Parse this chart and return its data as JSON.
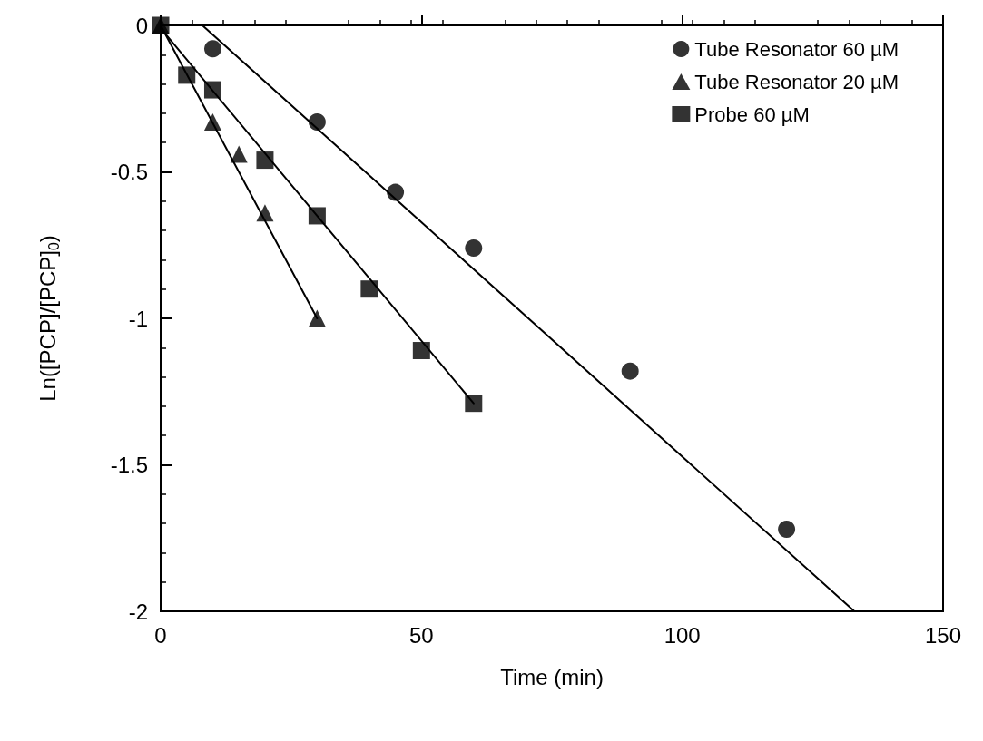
{
  "chart_data": {
    "type": "scatter",
    "xlabel": "Time (min)",
    "ylabel": "Ln([PCP]/[PCP]$_{0}$)",
    "xlim": [
      0,
      150
    ],
    "xticks": [
      0,
      50,
      100,
      150
    ],
    "ylim": [
      -2,
      0
    ],
    "yticks": [
      0,
      -0.5,
      -1,
      -1.5,
      -2
    ],
    "grid": false,
    "legend": "top right",
    "series": [
      {
        "name": "Tube Resonator 60 µM",
        "marker": "circle",
        "color": "#000000",
        "x": [
          10,
          30,
          45,
          60,
          90,
          120
        ],
        "values": [
          -0.08,
          -0.33,
          -0.57,
          -0.76,
          -1.18,
          -1.72
        ]
      },
      {
        "name": "Tube Resonator 20 µM",
        "marker": "triangle",
        "color": "#000000",
        "x": [
          0,
          10,
          15,
          20,
          30
        ],
        "values": [
          0,
          -0.33,
          -0.44,
          -0.64,
          -1.0
        ]
      },
      {
        "name": "Probe 60 µM",
        "marker": "square",
        "color": "#000000",
        "x": [
          0,
          5,
          10,
          20,
          30,
          40,
          50,
          60
        ],
        "values": [
          0,
          -0.17,
          -0.22,
          -0.46,
          -0.65,
          -0.9,
          -1.11,
          -1.29
        ]
      },
      {
        "type": "line",
        "marker": "none",
        "color": "#000000",
        "x": [
          8,
          133
        ],
        "values": [
          0,
          -2
        ]
      },
      {
        "type": "line",
        "marker": "none",
        "color": "#000000",
        "x": [
          0,
          30
        ],
        "values": [
          0,
          -1.0
        ]
      },
      {
        "type": "line",
        "marker": "none",
        "color": "#000000",
        "x": [
          0,
          60
        ],
        "values": [
          -0.01,
          -1.29
        ]
      }
    ]
  }
}
